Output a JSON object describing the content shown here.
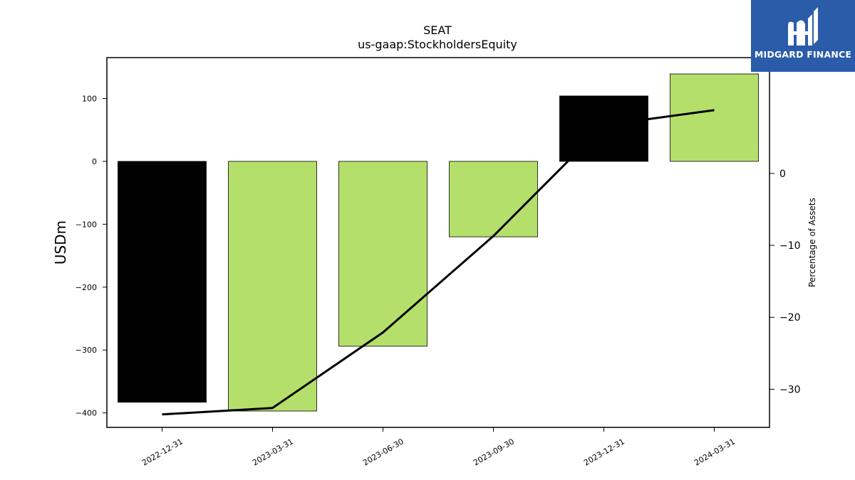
{
  "chart_data": {
    "type": "bar",
    "title": "SEAT",
    "subtitle": "us-gaap:StockholdersEquity",
    "ylabel": "USDm",
    "y2label": "Percentage of Assets",
    "categories": [
      "2022-12-31",
      "2023-03-31",
      "2023-06-30",
      "2023-09-30",
      "2023-12-31",
      "2024-03-31"
    ],
    "values": [
      -383,
      -397,
      -294,
      -120,
      104,
      139
    ],
    "bar_colors": [
      "#000000",
      "#b5df6b",
      "#b5df6b",
      "#b5df6b",
      "#000000",
      "#b5df6b"
    ],
    "line_series": {
      "axis": "right",
      "values": [
        -33.5,
        -32.6,
        -22.1,
        -8.7,
        6.7,
        8.8
      ]
    },
    "ylim": [
      -423,
      165
    ],
    "y2lim": [
      -35.3,
      16.1
    ],
    "yticks": [
      100,
      0,
      -100,
      -200,
      -300,
      -400
    ],
    "yticklabels": [
      "100",
      "0",
      "−100",
      "−200",
      "−300",
      "−400"
    ],
    "y2ticks": [
      0,
      -10,
      -20,
      -30
    ],
    "y2ticklabels": [
      "0",
      "−10",
      "−20",
      "−30"
    ],
    "grid": false,
    "legend": "none"
  },
  "logo": {
    "text": "MIDGARD FINANCE",
    "background": "#2a5caa",
    "icon": "midgard-logo-icon"
  }
}
